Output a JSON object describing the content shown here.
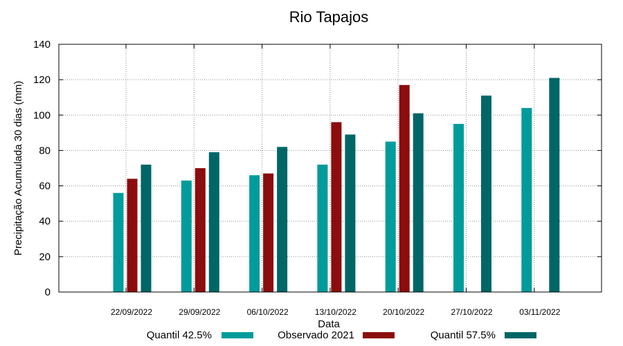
{
  "chart_data": {
    "type": "bar",
    "title": "Rio Tapajos",
    "xlabel": "Data",
    "ylabel": "Precipitação Acumulada 30 dias (mm)",
    "ylim": [
      0,
      140
    ],
    "yticks": [
      0,
      20,
      40,
      60,
      80,
      100,
      120,
      140
    ],
    "grid": true,
    "legend_position": "bottom",
    "categories": [
      "22/09/2022",
      "29/09/2022",
      "06/10/2022",
      "13/10/2022",
      "20/10/2022",
      "27/10/2022",
      "03/11/2022"
    ],
    "series": [
      {
        "name": "Quantil 42.5%",
        "color": "#009b9b",
        "values": [
          56,
          63,
          66,
          72,
          85,
          95,
          104
        ]
      },
      {
        "name": "Observado 2021",
        "color": "#8b0d0d",
        "values": [
          64,
          70,
          67,
          96,
          117,
          null,
          null
        ]
      },
      {
        "name": "Quantil 57.5%",
        "color": "#006666",
        "values": [
          72,
          79,
          82,
          89,
          101,
          111,
          121
        ]
      }
    ]
  }
}
